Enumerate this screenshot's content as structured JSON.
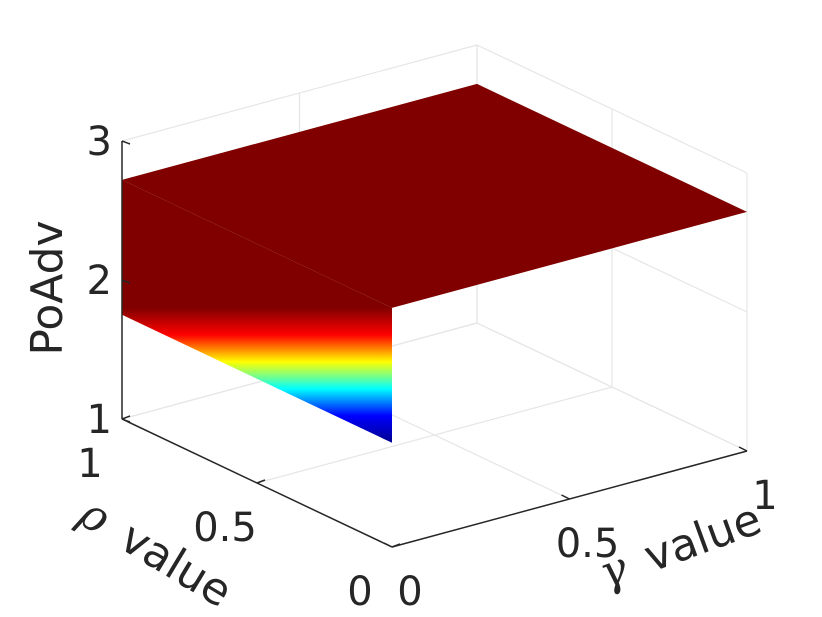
{
  "chart_data": {
    "type": "surface",
    "colormap": "jet",
    "grid": true,
    "xlabel": "value",
    "xlabel_symbol": "γ",
    "ylabel": "value",
    "ylabel_symbol": "ρ",
    "zlabel": "PoAdv",
    "xlim": [
      0,
      1
    ],
    "ylim": [
      0,
      1
    ],
    "zlim": [
      1,
      3
    ],
    "xticks": [
      {
        "value": 0,
        "label": "0"
      },
      {
        "value": 0.5,
        "label": "0.5"
      },
      {
        "value": 1,
        "label": "1"
      }
    ],
    "yticks": [
      {
        "value": 0,
        "label": "0"
      },
      {
        "value": 0.5,
        "label": "0.5"
      },
      {
        "value": 1,
        "label": "1"
      }
    ],
    "zticks": [
      {
        "value": 1,
        "label": "1"
      },
      {
        "value": 2,
        "label": "2"
      },
      {
        "value": 3,
        "label": "3"
      }
    ],
    "surface": {
      "x": [
        0,
        1
      ],
      "y": [
        0,
        1
      ],
      "z_plateau": 2.72,
      "z_at_x0_min": 1.75,
      "z_at_x0_max": 2.72,
      "step_x": 0.0
    }
  },
  "colors": {
    "plateau": "#800000",
    "colormap_stops": [
      "#00008f",
      "#0000ff",
      "#00ffff",
      "#ffff00",
      "#ff0000",
      "#800000"
    ]
  }
}
